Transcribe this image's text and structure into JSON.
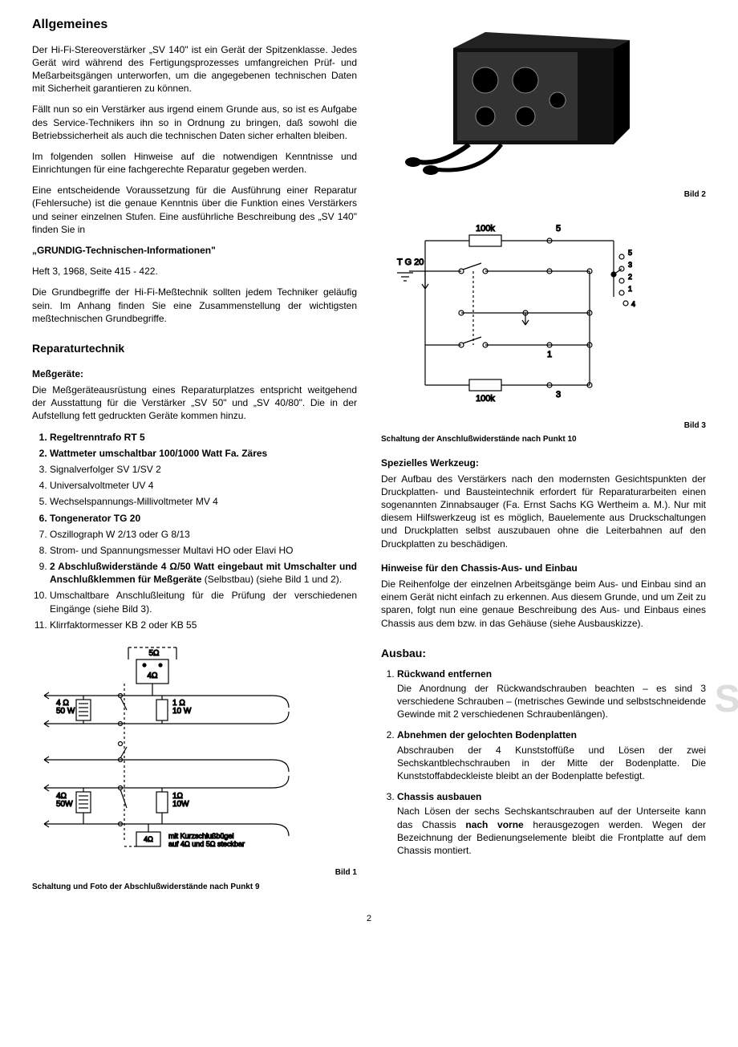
{
  "page_number": "2",
  "watermark": "S.",
  "left": {
    "h1": "Allgemeines",
    "p1": "Der Hi-Fi-Stereoverstärker „SV 140\" ist ein Gerät der Spitzenklasse. Jedes Gerät wird während des Fertigungsprozesses umfangreichen Prüf- und Meßarbeitsgängen unterworfen, um die angegebenen technischen Daten mit Sicherheit garantieren zu können.",
    "p2": "Fällt nun so ein Verstärker aus irgend einem Grunde aus, so ist es Aufgabe des Service-Technikers ihn so in Ordnung zu bringen, daß sowohl die Betriebssicherheit als auch die technischen Daten sicher erhalten bleiben.",
    "p3": "Im folgenden sollen Hinweise auf die notwendigen Kenntnisse und Einrichtungen für eine fachgerechte Reparatur gegeben werden.",
    "p4": "Eine entscheidende Voraussetzung für die Ausführung einer Reparatur (Fehlersuche) ist die genaue Kenntnis über die Funktion eines Verstärkers und seiner einzelnen Stufen. Eine ausführliche Beschreibung des „SV 140\" finden Sie in",
    "p5_bold": "„GRUNDIG-Technischen-Informationen\"",
    "p6": "Heft 3, 1968, Seite 415 - 422.",
    "p7": "Die Grundbegriffe der Hi-Fi-Meßtechnik sollten jedem Techniker geläufig sein. Im Anhang finden Sie eine Zusammenstellung der wichtigsten meßtechnischen Grundbegriffe.",
    "h2_reparatur": "Reparaturtechnik",
    "h3_mess": "Meßgeräte:",
    "p8": "Die Meßgeräteausrüstung eines Reparaturplatzes entspricht weitgehend der Ausstattung für die Verstärker „SV 50\" und „SV 40/80\". Die in der Aufstellung fett gedruckten Geräte kommen hinzu.",
    "list": [
      {
        "text": "Regeltrenntrafo RT 5",
        "bold": true
      },
      {
        "text": "Wattmeter umschaltbar 100/1000 Watt Fa. Zäres",
        "bold": true
      },
      {
        "text": "Signalverfolger SV 1/SV 2",
        "bold": false
      },
      {
        "text": "Universalvoltmeter UV 4",
        "bold": false
      },
      {
        "text": "Wechselspannungs-Millivoltmeter MV 4",
        "bold": false
      },
      {
        "text": "Tongenerator TG 20",
        "bold": true
      },
      {
        "text": "Oszillograph W 2/13 oder G 8/13",
        "bold": false
      },
      {
        "text": "Strom- und Spannungsmesser Multavi HO oder Elavi HO",
        "bold": false
      },
      {
        "text": "2 Abschlußwiderstände 4 Ω/50 Watt eingebaut mit Umschalter und Anschlußklemmen für Meßgeräte (Selbstbau) (siehe Bild 1 und 2).",
        "bold": true,
        "tail_plain": " (Selbstbau) (siehe Bild 1 und 2).",
        "head_bold": "2 Abschlußwiderstände 4 Ω/50 Watt eingebaut mit Umschalter und Anschlußklemmen für Meßgeräte"
      },
      {
        "text": "Umschaltbare Anschlußleitung für die Prüfung der verschiedenen Eingänge (siehe Bild 3).",
        "bold": false
      },
      {
        "text": "Klirrfaktormesser KB 2 oder KB 55",
        "bold": false
      }
    ],
    "fig1": {
      "label": "Bild 1",
      "caption": "Schaltung und Foto der Abschlußwiderstände nach Punkt 9",
      "labels": {
        "l_5ohm": "5Ω",
        "l_4ohm": "4Ω",
        "l_4ohm50w_a": "4 Ω\n50 W",
        "l_4ohm50w_b": "4Ω\n50W",
        "l_1ohm10w_a": "1 Ω\n10 W",
        "l_1ohm10w_b": "1Ω\n10W",
        "l_bottom": "mit Kurzschlußbügel\nauf 4Ω und 5Ω steckbar"
      }
    }
  },
  "right": {
    "fig2_label": "Bild 2",
    "fig3": {
      "label": "Bild 3",
      "caption": "Schaltung der Anschlußwiderstände nach Punkt 10",
      "labels": {
        "tg20": "T G 20",
        "r100k_top": "100k",
        "r100k_bot": "100k",
        "n5": "5",
        "n3_top": "3",
        "n2": "2",
        "n1_top": "1",
        "n1_bot": "1",
        "n3_bot": "3",
        "n4": "4",
        "n5_small": "5"
      }
    },
    "h3_spez": "Spezielles Werkzeug:",
    "p_spez": "Der Aufbau des Verstärkers nach den modernsten Gesichtspunkten der Druckplatten- und Bausteintechnik erfordert für Reparaturarbeiten einen sogenannten Zinnabsauger (Fa. Ernst Sachs KG Wertheim a. M.). Nur mit diesem Hilfswerkzeug ist es möglich, Bauelemente aus Druckschaltungen und Druckplatten selbst auszubauen ohne die Leiterbahnen auf den Druckplatten zu beschädigen.",
    "h3_hinw": "Hinweise für den Chassis-Aus- und Einbau",
    "p_hinw": "Die Reihenfolge der einzelnen Arbeitsgänge beim Aus- und Einbau sind an einem Gerät nicht einfach zu erkennen. Aus diesem Grunde, und um Zeit zu sparen, folgt nun eine genaue Beschreibung des Aus- und Einbaus eines Chassis aus dem bzw. in das Gehäuse (siehe Ausbauskizze).",
    "h2_ausbau": "Ausbau:",
    "ausbau": [
      {
        "title": "Rückwand entfernen",
        "body": "Die Anordnung der Rückwandschrauben beachten – es sind 3 verschiedene Schrauben – (metrisches Gewinde und selbstschneidende Gewinde mit 2 verschiedenen Schraubenlängen)."
      },
      {
        "title": "Abnehmen der gelochten Bodenplatten",
        "body": "Abschrauben der 4 Kunststoffüße und Lösen der zwei Sechskantblechschrauben in der Mitte der Bodenplatte. Die Kunststoffabdeckleiste bleibt an der Bodenplatte befestigt."
      },
      {
        "title": "Chassis ausbauen",
        "body_pre": "Nach Lösen der sechs Sechskantschrauben auf der Unterseite kann das Chassis ",
        "body_bold": "nach vorne",
        "body_post": " herausgezogen werden. Wegen der Bezeichnung der Bedienungselemente bleibt die Frontplatte auf dem Chassis montiert."
      }
    ]
  }
}
